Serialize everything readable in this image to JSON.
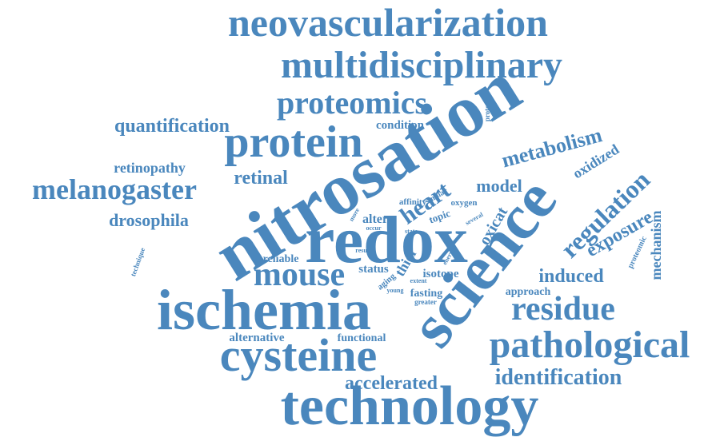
{
  "color": "#4a87bd",
  "background": "#ffffff",
  "words": [
    {
      "text": "neovascularization"
    },
    {
      "text": "multidisciplinary"
    },
    {
      "text": "proteomics"
    },
    {
      "text": "proteome"
    },
    {
      "text": "quantification"
    },
    {
      "text": "condition"
    },
    {
      "text": "protein"
    },
    {
      "text": "nitrosation"
    },
    {
      "text": "metabolism"
    },
    {
      "text": "oxidized"
    },
    {
      "text": "retinopathy"
    },
    {
      "text": "retinal"
    },
    {
      "text": "melanogaster"
    },
    {
      "text": "model"
    },
    {
      "text": "heart"
    },
    {
      "text": "regulation"
    },
    {
      "text": "similar"
    },
    {
      "text": "affinity"
    },
    {
      "text": "oxygen"
    },
    {
      "text": "topic"
    },
    {
      "text": "oxicat"
    },
    {
      "text": "several"
    },
    {
      "text": "alter"
    },
    {
      "text": "more"
    },
    {
      "text": "occur"
    },
    {
      "text": "drosophila"
    },
    {
      "text": "science"
    },
    {
      "text": "exposure"
    },
    {
      "text": "mechanism"
    },
    {
      "text": "proteomic"
    },
    {
      "text": "redox"
    },
    {
      "text": "state"
    },
    {
      "text": "technique"
    },
    {
      "text": "reliable"
    },
    {
      "text": "result"
    },
    {
      "text": "energy"
    },
    {
      "text": "thiol"
    },
    {
      "text": "status"
    },
    {
      "text": "mouse"
    },
    {
      "text": "aging"
    },
    {
      "text": "isotope"
    },
    {
      "text": "extent"
    },
    {
      "text": "induced"
    },
    {
      "text": "approach"
    },
    {
      "text": "young"
    },
    {
      "text": "fasting"
    },
    {
      "text": "greater"
    },
    {
      "text": "ischemia"
    },
    {
      "text": "residue"
    },
    {
      "text": "alternative"
    },
    {
      "text": "functional"
    },
    {
      "text": "pathological"
    },
    {
      "text": "cysteine"
    },
    {
      "text": "identification"
    },
    {
      "text": "accelerated"
    },
    {
      "text": "technology"
    }
  ]
}
